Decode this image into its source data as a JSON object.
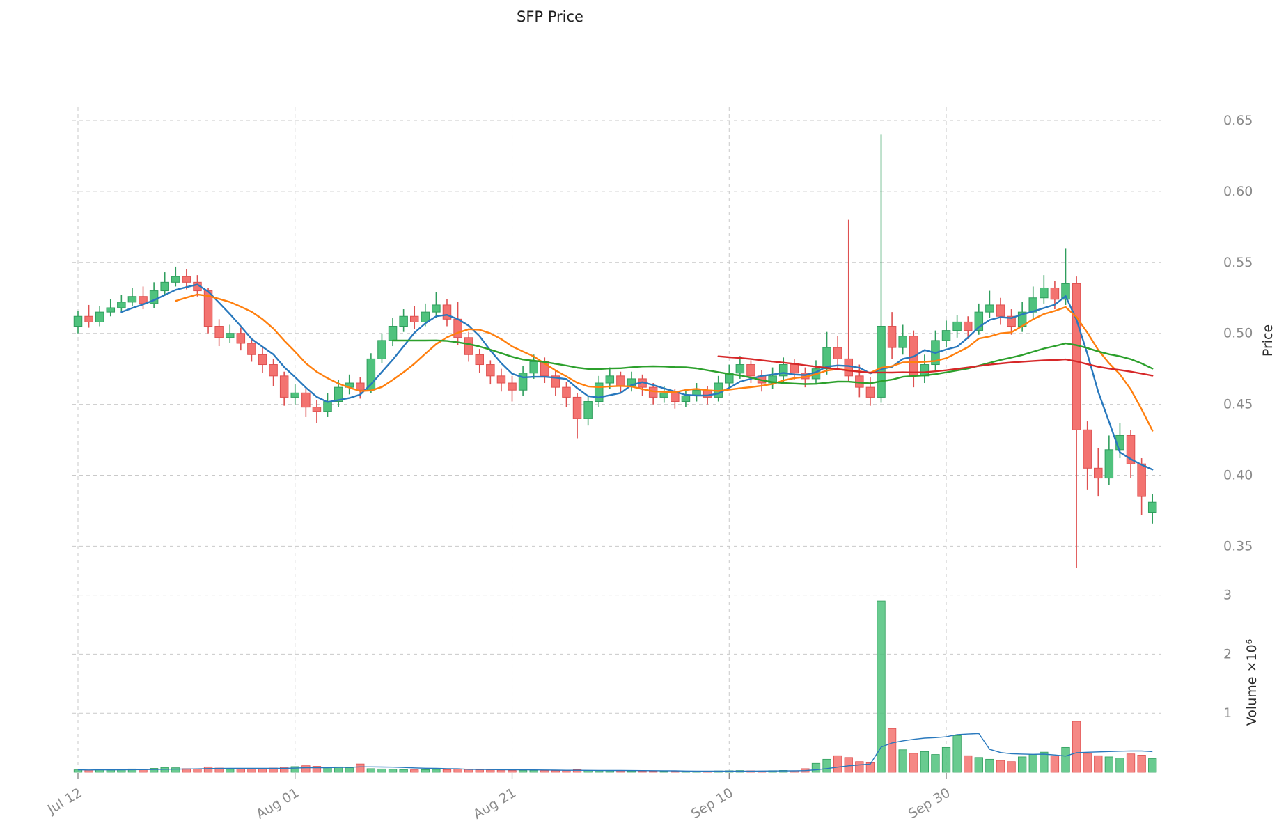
{
  "chart": {
    "title": "SFP Price"
  },
  "axes": {
    "price_label": "Price",
    "volume_label": "Volume  ×10⁶",
    "price_ticks": [
      {
        "label": "0.65",
        "value": 0.65
      },
      {
        "label": "0.60",
        "value": 0.6
      },
      {
        "label": "0.55",
        "value": 0.55
      },
      {
        "label": "0.50",
        "value": 0.5
      },
      {
        "label": "0.45",
        "value": 0.45
      },
      {
        "label": "0.40",
        "value": 0.4
      },
      {
        "label": "0.35",
        "value": 0.35
      }
    ],
    "volume_ticks": [
      {
        "label": "1",
        "value": 1000000
      },
      {
        "label": "2",
        "value": 2000000
      },
      {
        "label": "3",
        "value": 3000000
      }
    ],
    "x_ticks": [
      {
        "label": "Jul 12",
        "index": 0
      },
      {
        "label": "Aug 01",
        "index": 20
      },
      {
        "label": "Aug 21",
        "index": 40
      },
      {
        "label": "Sep 10",
        "index": 60
      },
      {
        "label": "Sep 30",
        "index": 80
      }
    ]
  },
  "colors": {
    "up_fill": "#4fc27d",
    "up_edge": "#2f9e5d",
    "down_fill": "#f37370",
    "down_edge": "#de5050",
    "ma_colors": [
      "#2878bd",
      "#ff7f0e",
      "#2ca02c",
      "#d62728"
    ],
    "volume_line": "#2878bd",
    "grid": "#c9c9c9",
    "tick_text": "#8a8a8a",
    "title_text": "#1f1f1f"
  },
  "chart_data": {
    "type": "candlestick",
    "title": "SFP Price",
    "panes": [
      "price",
      "volume"
    ],
    "x_tick_labels": [
      "Jul 12",
      "Aug 01",
      "Aug 21",
      "Sep 10",
      "Sep 30"
    ],
    "x_tick_indices": [
      0,
      20,
      40,
      60,
      80
    ],
    "ylim_price": [
      0.33,
      0.66
    ],
    "ylim_volume": [
      0,
      3100000
    ],
    "price_axis_ticks": [
      0.35,
      0.4,
      0.45,
      0.5,
      0.55,
      0.6,
      0.65
    ],
    "volume_axis_ticks": [
      1000000,
      2000000,
      3000000
    ],
    "ma_windows": [
      5,
      10,
      30,
      60
    ],
    "volume_ma_window": 10,
    "grid": "dashed",
    "legend_position": "none",
    "open": [
      0.505,
      0.512,
      0.508,
      0.515,
      0.518,
      0.522,
      0.526,
      0.521,
      0.53,
      0.536,
      0.54,
      0.536,
      0.53,
      0.505,
      0.497,
      0.5,
      0.493,
      0.485,
      0.478,
      0.47,
      0.455,
      0.458,
      0.448,
      0.445,
      0.452,
      0.462,
      0.465,
      0.46,
      0.482,
      0.495,
      0.505,
      0.512,
      0.508,
      0.515,
      0.52,
      0.51,
      0.497,
      0.485,
      0.478,
      0.47,
      0.465,
      0.46,
      0.472,
      0.48,
      0.47,
      0.462,
      0.455,
      0.44,
      0.452,
      0.465,
      0.47,
      0.463,
      0.468,
      0.462,
      0.455,
      0.458,
      0.452,
      0.456,
      0.46,
      0.455,
      0.465,
      0.472,
      0.478,
      0.47,
      0.465,
      0.47,
      0.478,
      0.472,
      0.468,
      0.475,
      0.49,
      0.482,
      0.47,
      0.462,
      0.455,
      0.505,
      0.49,
      0.498,
      0.47,
      0.478,
      0.495,
      0.502,
      0.508,
      0.502,
      0.515,
      0.52,
      0.512,
      0.505,
      0.515,
      0.525,
      0.532,
      0.524,
      0.535,
      0.432,
      0.405,
      0.398,
      0.418,
      0.428,
      0.408,
      0.374
    ],
    "high": [
      0.516,
      0.52,
      0.519,
      0.524,
      0.527,
      0.532,
      0.533,
      0.536,
      0.543,
      0.547,
      0.545,
      0.541,
      0.532,
      0.51,
      0.506,
      0.504,
      0.497,
      0.49,
      0.482,
      0.473,
      0.464,
      0.461,
      0.453,
      0.458,
      0.467,
      0.471,
      0.469,
      0.486,
      0.5,
      0.511,
      0.517,
      0.519,
      0.521,
      0.529,
      0.524,
      0.522,
      0.501,
      0.489,
      0.481,
      0.475,
      0.47,
      0.477,
      0.485,
      0.483,
      0.474,
      0.466,
      0.458,
      0.456,
      0.47,
      0.476,
      0.473,
      0.473,
      0.471,
      0.465,
      0.463,
      0.461,
      0.461,
      0.465,
      0.463,
      0.47,
      0.478,
      0.484,
      0.481,
      0.474,
      0.476,
      0.483,
      0.482,
      0.476,
      0.481,
      0.501,
      0.498,
      0.58,
      0.478,
      0.469,
      0.64,
      0.515,
      0.506,
      0.502,
      0.485,
      0.502,
      0.509,
      0.513,
      0.512,
      0.521,
      0.53,
      0.525,
      0.517,
      0.522,
      0.533,
      0.541,
      0.537,
      0.56,
      0.54,
      0.438,
      0.419,
      0.428,
      0.437,
      0.432,
      0.412,
      0.387
    ],
    "low": [
      0.5,
      0.504,
      0.505,
      0.512,
      0.515,
      0.519,
      0.517,
      0.518,
      0.527,
      0.533,
      0.531,
      0.526,
      0.5,
      0.491,
      0.493,
      0.488,
      0.48,
      0.472,
      0.463,
      0.449,
      0.45,
      0.441,
      0.437,
      0.441,
      0.448,
      0.457,
      0.454,
      0.458,
      0.479,
      0.491,
      0.501,
      0.503,
      0.505,
      0.511,
      0.505,
      0.492,
      0.48,
      0.472,
      0.464,
      0.459,
      0.452,
      0.456,
      0.468,
      0.465,
      0.456,
      0.448,
      0.426,
      0.435,
      0.448,
      0.461,
      0.458,
      0.459,
      0.456,
      0.45,
      0.451,
      0.447,
      0.448,
      0.452,
      0.45,
      0.452,
      0.461,
      0.468,
      0.465,
      0.459,
      0.461,
      0.466,
      0.467,
      0.462,
      0.464,
      0.471,
      0.475,
      0.466,
      0.455,
      0.449,
      0.451,
      0.482,
      0.485,
      0.462,
      0.465,
      0.474,
      0.49,
      0.497,
      0.496,
      0.499,
      0.511,
      0.506,
      0.499,
      0.501,
      0.511,
      0.521,
      0.517,
      0.52,
      0.335,
      0.39,
      0.385,
      0.393,
      0.412,
      0.398,
      0.372,
      0.366
    ],
    "close": [
      0.512,
      0.508,
      0.515,
      0.518,
      0.522,
      0.526,
      0.521,
      0.53,
      0.536,
      0.54,
      0.536,
      0.53,
      0.505,
      0.497,
      0.5,
      0.493,
      0.485,
      0.478,
      0.47,
      0.455,
      0.458,
      0.448,
      0.445,
      0.452,
      0.462,
      0.465,
      0.46,
      0.482,
      0.495,
      0.505,
      0.512,
      0.508,
      0.515,
      0.52,
      0.51,
      0.497,
      0.485,
      0.478,
      0.47,
      0.465,
      0.46,
      0.472,
      0.48,
      0.47,
      0.462,
      0.455,
      0.44,
      0.452,
      0.465,
      0.47,
      0.463,
      0.468,
      0.462,
      0.455,
      0.458,
      0.452,
      0.456,
      0.46,
      0.455,
      0.465,
      0.472,
      0.478,
      0.47,
      0.465,
      0.47,
      0.478,
      0.472,
      0.468,
      0.475,
      0.49,
      0.482,
      0.47,
      0.462,
      0.455,
      0.505,
      0.49,
      0.498,
      0.47,
      0.478,
      0.495,
      0.502,
      0.508,
      0.502,
      0.515,
      0.52,
      0.512,
      0.505,
      0.515,
      0.525,
      0.532,
      0.524,
      0.535,
      0.432,
      0.405,
      0.398,
      0.418,
      0.428,
      0.408,
      0.385,
      0.381
    ],
    "volume": [
      40000,
      35000,
      45000,
      38000,
      42000,
      55000,
      48000,
      65000,
      80000,
      75000,
      60000,
      55000,
      90000,
      70000,
      50000,
      55000,
      60000,
      65000,
      70000,
      85000,
      95000,
      110000,
      100000,
      80000,
      90000,
      75000,
      140000,
      60000,
      55000,
      50000,
      45000,
      40000,
      42000,
      48000,
      44000,
      52000,
      46000,
      40000,
      38000,
      35000,
      30000,
      28000,
      32000,
      30000,
      26000,
      28000,
      45000,
      30000,
      26000,
      24000,
      22000,
      20000,
      18000,
      16000,
      14000,
      15000,
      16000,
      18000,
      15000,
      22000,
      25000,
      28000,
      24000,
      20000,
      26000,
      30000,
      25000,
      60000,
      150000,
      220000,
      280000,
      250000,
      180000,
      160000,
      2900000,
      740000,
      380000,
      320000,
      350000,
      300000,
      420000,
      620000,
      280000,
      250000,
      220000,
      200000,
      180000,
      260000,
      300000,
      340000,
      280000,
      420000,
      860000,
      320000,
      280000,
      260000,
      240000,
      310000,
      290000,
      230000
    ]
  }
}
